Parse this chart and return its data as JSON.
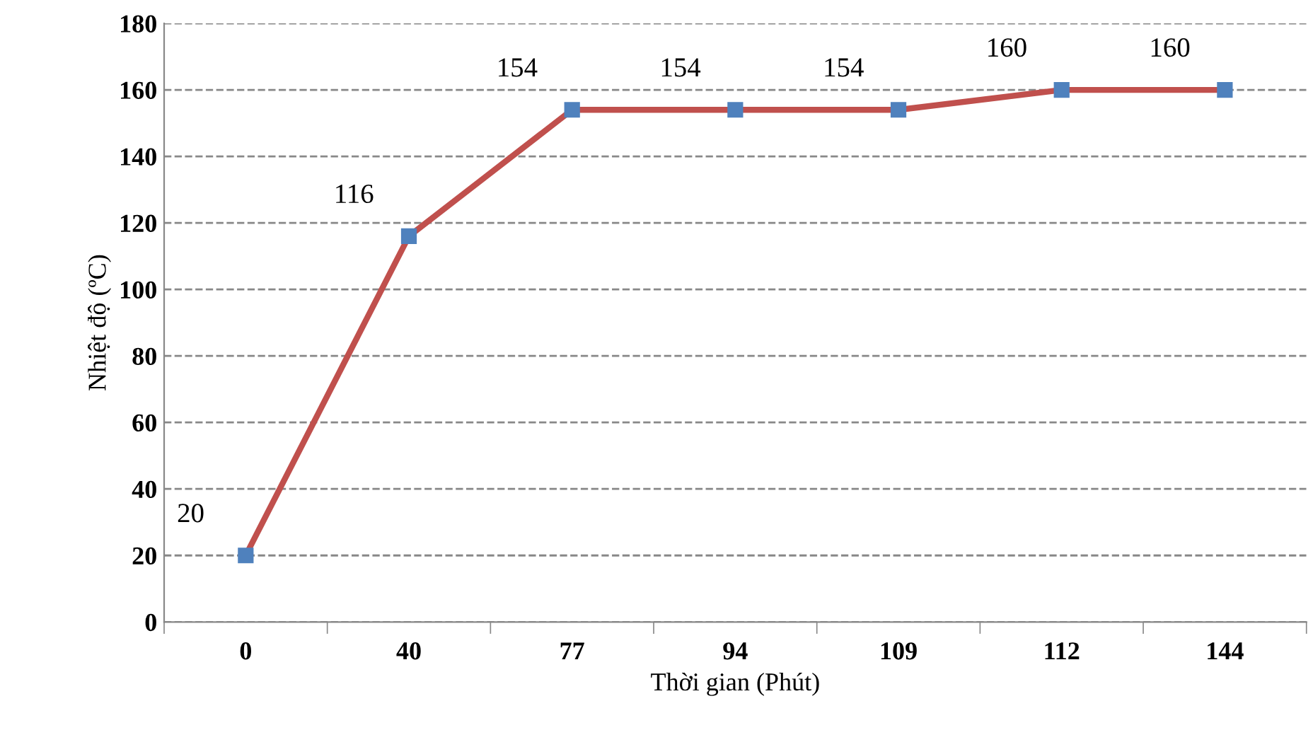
{
  "chart_data": {
    "type": "line",
    "xlabel": "Thời gian (Phút)",
    "ylabel": "Nhiệt độ (ºC)",
    "categories": [
      "0",
      "40",
      "77",
      "94",
      "109",
      "112",
      "144"
    ],
    "series": [
      {
        "color": "#c0504d",
        "values": [
          20,
          116,
          154,
          154,
          154,
          160,
          160
        ]
      }
    ],
    "marker": "square",
    "line_style": "solid",
    "ylim": [
      0,
      180
    ],
    "yticks": [
      0,
      20,
      40,
      60,
      80,
      100,
      120,
      140,
      160,
      180
    ],
    "grid": "y",
    "data_labels": true,
    "legend": false
  }
}
